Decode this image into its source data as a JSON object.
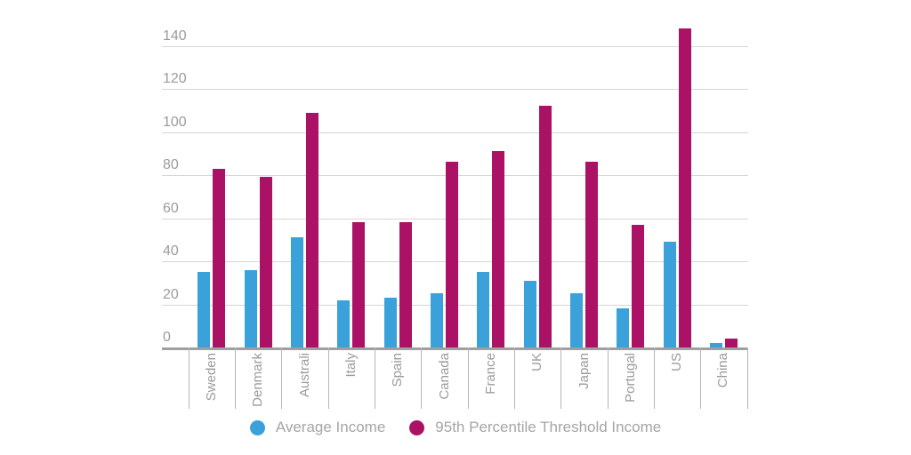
{
  "chart_data": {
    "type": "bar",
    "title": "",
    "xlabel": "",
    "ylabel": "",
    "categories": [
      "Sweden",
      "Denmark",
      "Australi",
      "Italy",
      "Spain",
      "Canada",
      "France",
      "UK",
      "Japan",
      "Portugal",
      "US",
      "China"
    ],
    "series": [
      {
        "name": "Average Income",
        "color": "#3aa1da",
        "values": [
          35,
          36,
          51,
          22,
          23,
          25,
          35,
          31,
          25,
          18,
          49,
          2
        ]
      },
      {
        "name": "95th Percentile Threshold Income",
        "color": "#ab1266",
        "values": [
          83,
          79,
          109,
          58,
          58,
          86,
          91,
          112,
          86,
          57,
          148,
          4
        ]
      }
    ],
    "ylim": [
      0,
      150
    ],
    "ytick_step": 20,
    "ytick_labels": [
      "0",
      "20",
      "40",
      "60",
      "80",
      "100",
      "120",
      "140"
    ],
    "grid": true,
    "legend_position": "bottom",
    "x_labels_rotated_degrees": 90
  },
  "style_colors": {
    "background": "#ffffff",
    "gridline": "#d6d6d6",
    "axis_line": "#9f9f9f",
    "tick_line": "#b6b6b6",
    "axis_text": "#9b9b9b",
    "legend_text": "#a5a5a5"
  }
}
